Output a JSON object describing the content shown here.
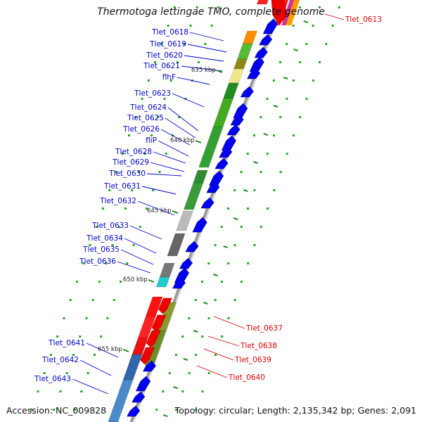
{
  "title": "Thermotoga lettingae TMO, complete genome",
  "accession": "Accession: NC_009828",
  "topology": "Topology: circular; Length: 2,135,342 bp; Genes: 2,091",
  "colors": {
    "forward_label": "#0000cc",
    "reverse_label": "#dd0000",
    "gene_arrow": "#0000ee",
    "backbone": "#9a9a9a",
    "tick": "#22aa22"
  },
  "kbp_markers": [
    "635 kbp",
    "640 kbp",
    "645 kbp",
    "650 kbp",
    "655 kbp"
  ],
  "forward_genes": [
    "Tlet_0618",
    "Tlet_0619",
    "Tlet_0620",
    "Tlet_0621",
    "flhF",
    "Tlet_0623",
    "Tlet_0624",
    "Tlet_0625",
    "Tlet_0626",
    "fliP",
    "Tlet_0628",
    "Tlet_0629",
    "Tlet_0630",
    "Tlet_0631",
    "Tlet_0632",
    "Tlet_0633",
    "Tlet_0634",
    "Tlet_0635",
    "Tlet_0636",
    "Tlet_0641",
    "Tlet_0642",
    "Tlet_0643"
  ],
  "reverse_genes": [
    "Tlet_0613",
    "Tlet_0637",
    "Tlet_0638",
    "Tlet_0639",
    "Tlet_0640"
  ]
}
